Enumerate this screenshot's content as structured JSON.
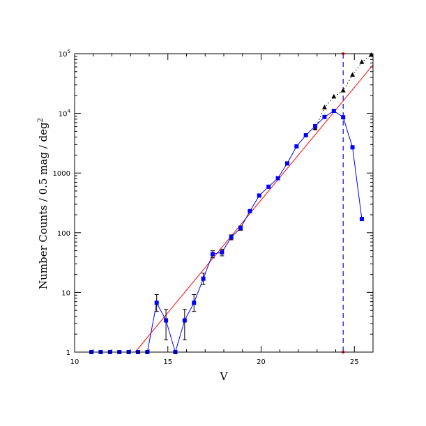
{
  "chart_data": {
    "type": "scatter",
    "xlabel": "V",
    "ylabel_main": "Number Counts / 0.5 mag / deg",
    "ylabel_sup": "2",
    "x_range": [
      10,
      26
    ],
    "y_range": [
      1,
      100000
    ],
    "y_scale": "log",
    "x_ticks": [
      10,
      15,
      20,
      25
    ],
    "y_ticks": [
      {
        "value": 1,
        "label": "1",
        "sup": ""
      },
      {
        "value": 10,
        "label": "10",
        "sup": ""
      },
      {
        "value": 100,
        "label": "100",
        "sup": ""
      },
      {
        "value": 1000,
        "label": "1000",
        "sup": ""
      },
      {
        "value": 10000,
        "label": "10",
        "sup": "4"
      },
      {
        "value": 100000,
        "label": "10",
        "sup": "5"
      }
    ],
    "series": [
      {
        "style": "blue squares with error bars, connected",
        "color": "#0000ff",
        "points": [
          {
            "x": 10.9,
            "y": 1
          },
          {
            "x": 11.4,
            "y": 1
          },
          {
            "x": 11.9,
            "y": 1
          },
          {
            "x": 12.4,
            "y": 1
          },
          {
            "x": 12.9,
            "y": 1
          },
          {
            "x": 13.4,
            "y": 1
          },
          {
            "x": 13.9,
            "y": 1
          },
          {
            "x": 14.4,
            "y": 6.7,
            "lo": 4.8,
            "hi": 9.2
          },
          {
            "x": 14.9,
            "y": 3.4,
            "lo": 1.6,
            "hi": 5.2
          },
          {
            "x": 15.4,
            "y": 1
          },
          {
            "x": 15.9,
            "y": 3.4,
            "lo": 1.6,
            "hi": 5.2
          },
          {
            "x": 16.4,
            "y": 6.7,
            "lo": 4.8,
            "hi": 9.2
          },
          {
            "x": 16.9,
            "y": 17,
            "lo": 13.5,
            "hi": 21
          },
          {
            "x": 17.4,
            "y": 44,
            "lo": 38,
            "hi": 50
          },
          {
            "x": 17.9,
            "y": 47,
            "lo": 41,
            "hi": 53
          },
          {
            "x": 18.4,
            "y": 84,
            "lo": 76,
            "hi": 92
          },
          {
            "x": 18.9,
            "y": 120,
            "lo": 110,
            "hi": 130
          },
          {
            "x": 19.4,
            "y": 230
          },
          {
            "x": 19.9,
            "y": 420
          },
          {
            "x": 20.4,
            "y": 590
          },
          {
            "x": 20.9,
            "y": 820
          },
          {
            "x": 21.4,
            "y": 1450
          },
          {
            "x": 21.9,
            "y": 2800
          },
          {
            "x": 22.4,
            "y": 4300
          },
          {
            "x": 22.9,
            "y": 6100
          },
          {
            "x": 23.4,
            "y": 8700
          },
          {
            "x": 23.9,
            "y": 11000
          },
          {
            "x": 24.4,
            "y": 8600
          },
          {
            "x": 24.9,
            "y": 2700
          },
          {
            "x": 25.4,
            "y": 170
          }
        ]
      },
      {
        "style": "black triangles, dotted line",
        "color": "#000000",
        "points": [
          {
            "x": 22.9,
            "y": 5600
          },
          {
            "x": 23.4,
            "y": 12500
          },
          {
            "x": 23.9,
            "y": 19000
          },
          {
            "x": 24.4,
            "y": 24000
          },
          {
            "x": 24.9,
            "y": 44000
          },
          {
            "x": 25.4,
            "y": 72000
          },
          {
            "x": 25.9,
            "y": 95000
          }
        ]
      }
    ],
    "fit_line": {
      "color": "#ff0000",
      "points": [
        {
          "x": 13.25,
          "y": 1
        },
        {
          "x": 26,
          "y": 65000
        }
      ]
    },
    "limit_line": {
      "x": 24.4,
      "color": "#0000ff",
      "style": "dashed vertical"
    }
  }
}
